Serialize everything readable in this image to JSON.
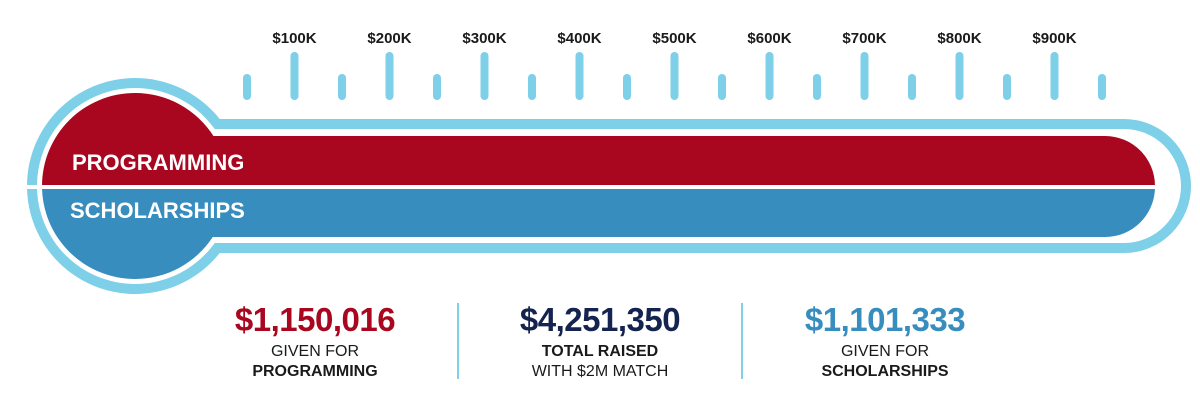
{
  "chart_data": {
    "type": "bar",
    "title": "",
    "tick_labels": [
      "$100K",
      "$200K",
      "$300K",
      "$400K",
      "$500K",
      "$600K",
      "$700K",
      "$800K",
      "$900K"
    ],
    "axis_range": [
      0,
      1000000
    ],
    "series": [
      {
        "name": "PROGRAMMING",
        "value": 1150016,
        "color": "#a8071f"
      },
      {
        "name": "SCHOLARSHIPS",
        "value": 1101333,
        "color": "#378dbe"
      }
    ]
  },
  "colors": {
    "tube": "#7ecfe8",
    "programming": "#a8071f",
    "scholarships": "#378dbe",
    "total": "#14234f"
  },
  "stats": [
    {
      "amount": "$1,150,016",
      "line1": "GIVEN FOR",
      "line2": "PROGRAMMING"
    },
    {
      "amount": "$4,251,350",
      "line1": "TOTAL RAISED",
      "line2": "WITH $2M MATCH"
    },
    {
      "amount": "$1,101,333",
      "line1": "GIVEN FOR",
      "line2": "SCHOLARSHIPS"
    }
  ]
}
